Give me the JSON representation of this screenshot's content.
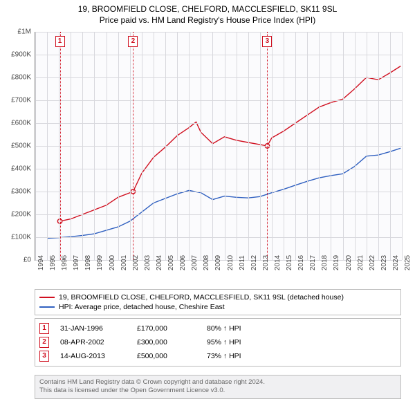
{
  "title": {
    "line1": "19, BROOMFIELD CLOSE, CHELFORD, MACCLESFIELD, SK11 9SL",
    "line2": "Price paid vs. HM Land Registry's House Price Index (HPI)"
  },
  "chart": {
    "type": "line",
    "background_color": "#fbfbfd",
    "grid_color": "#d8d8dd",
    "ylim": [
      0,
      1000000
    ],
    "ytick_step": 100000,
    "ytick_labels": [
      "£0",
      "£100K",
      "£200K",
      "£300K",
      "£400K",
      "£500K",
      "£600K",
      "£700K",
      "£800K",
      "£900K",
      "£1M"
    ],
    "xrange": [
      1994,
      2025
    ],
    "xtick_years": [
      1994,
      1995,
      1996,
      1997,
      1998,
      1999,
      2000,
      2001,
      2002,
      2003,
      2004,
      2005,
      2006,
      2007,
      2008,
      2009,
      2010,
      2011,
      2012,
      2013,
      2014,
      2015,
      2016,
      2017,
      2018,
      2019,
      2020,
      2021,
      2022,
      2023,
      2024,
      2025
    ],
    "series": [
      {
        "name": "property",
        "color": "#d01020",
        "points": [
          [
            1996.08,
            170000
          ],
          [
            1997,
            180000
          ],
          [
            1998,
            200000
          ],
          [
            1999,
            220000
          ],
          [
            2000,
            240000
          ],
          [
            2001,
            275000
          ],
          [
            2002.27,
            300000
          ],
          [
            2003,
            380000
          ],
          [
            2004,
            450000
          ],
          [
            2005,
            495000
          ],
          [
            2006,
            545000
          ],
          [
            2007,
            580000
          ],
          [
            2007.6,
            605000
          ],
          [
            2008,
            560000
          ],
          [
            2009,
            510000
          ],
          [
            2010,
            540000
          ],
          [
            2011,
            525000
          ],
          [
            2012,
            515000
          ],
          [
            2013.62,
            500000
          ],
          [
            2014,
            535000
          ],
          [
            2015,
            565000
          ],
          [
            2016,
            600000
          ],
          [
            2017,
            635000
          ],
          [
            2018,
            670000
          ],
          [
            2019,
            690000
          ],
          [
            2020,
            705000
          ],
          [
            2021,
            750000
          ],
          [
            2022,
            800000
          ],
          [
            2023,
            790000
          ],
          [
            2024,
            820000
          ],
          [
            2024.9,
            850000
          ]
        ]
      },
      {
        "name": "hpi",
        "color": "#3060c0",
        "points": [
          [
            1995,
            95000
          ],
          [
            1996,
            98000
          ],
          [
            1997,
            102000
          ],
          [
            1998,
            108000
          ],
          [
            1999,
            115000
          ],
          [
            2000,
            130000
          ],
          [
            2001,
            145000
          ],
          [
            2002,
            170000
          ],
          [
            2003,
            210000
          ],
          [
            2004,
            250000
          ],
          [
            2005,
            270000
          ],
          [
            2006,
            290000
          ],
          [
            2007,
            305000
          ],
          [
            2008,
            295000
          ],
          [
            2009,
            265000
          ],
          [
            2010,
            280000
          ],
          [
            2011,
            275000
          ],
          [
            2012,
            272000
          ],
          [
            2013,
            278000
          ],
          [
            2014,
            295000
          ],
          [
            2015,
            310000
          ],
          [
            2016,
            328000
          ],
          [
            2017,
            345000
          ],
          [
            2018,
            360000
          ],
          [
            2019,
            370000
          ],
          [
            2020,
            378000
          ],
          [
            2021,
            410000
          ],
          [
            2022,
            455000
          ],
          [
            2023,
            460000
          ],
          [
            2024,
            475000
          ],
          [
            2024.9,
            490000
          ]
        ]
      }
    ],
    "transactions_on_chart": [
      {
        "n": "1",
        "year": 1996.08,
        "value": 170000,
        "color": "#d01020"
      },
      {
        "n": "2",
        "year": 2002.27,
        "value": 300000,
        "color": "#d01020"
      },
      {
        "n": "3",
        "year": 2013.62,
        "value": 500000,
        "color": "#d01020"
      }
    ]
  },
  "legend": {
    "items": [
      {
        "color": "#d01020",
        "label": "19, BROOMFIELD CLOSE, CHELFORD, MACCLESFIELD, SK11 9SL (detached house)"
      },
      {
        "color": "#3060c0",
        "label": "HPI: Average price, detached house, Cheshire East"
      }
    ]
  },
  "transactions_table": {
    "rows": [
      {
        "n": "1",
        "color": "#d01020",
        "date": "31-JAN-1996",
        "price": "£170,000",
        "pct": "80% ↑ HPI"
      },
      {
        "n": "2",
        "color": "#d01020",
        "date": "08-APR-2002",
        "price": "£300,000",
        "pct": "95% ↑ HPI"
      },
      {
        "n": "3",
        "color": "#d01020",
        "date": "14-AUG-2013",
        "price": "£500,000",
        "pct": "73% ↑ HPI"
      }
    ]
  },
  "footer": {
    "line1": "Contains HM Land Registry data © Crown copyright and database right 2024.",
    "line2": "This data is licensed under the Open Government Licence v3.0."
  }
}
